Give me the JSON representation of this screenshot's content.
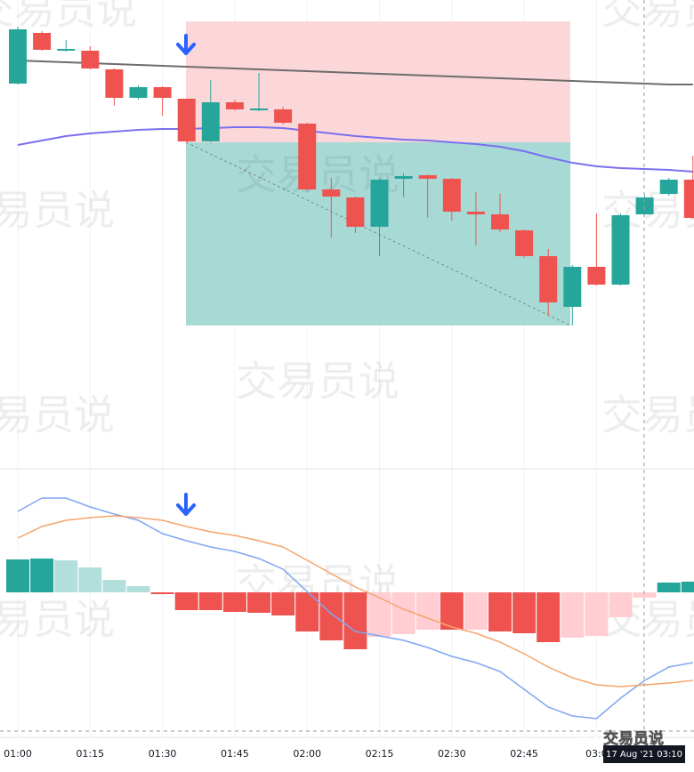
{
  "chart_data": [
    {
      "type": "candlestick",
      "categories": [
        "01:00",
        null,
        null,
        "01:15",
        null,
        null,
        "01:30",
        null,
        null,
        "01:45",
        null,
        null,
        "02:00",
        null,
        null,
        "02:15",
        null,
        null,
        "02:30",
        null,
        null,
        "02:45",
        null,
        null,
        "03:0",
        null,
        null,
        null,
        null
      ],
      "open": [
        426,
        483,
        463,
        463,
        442,
        410,
        422,
        409,
        361,
        405,
        396,
        397,
        381,
        307,
        298,
        265,
        319,
        323,
        319,
        282,
        279,
        261,
        232,
        175,
        220,
        200,
        279,
        302,
        318
      ],
      "high": [
        490,
        485,
        475,
        468,
        443,
        424,
        423,
        409,
        430,
        408,
        438,
        400,
        382,
        320,
        299,
        320,
        325,
        324,
        320,
        304,
        302,
        262,
        240,
        222,
        280,
        280,
        300,
        320,
        345
      ],
      "low": [
        425,
        463,
        462,
        442,
        401,
        408,
        390,
        360,
        360,
        396,
        395,
        380,
        305,
        253,
        258,
        232,
        298,
        275,
        272,
        244,
        259,
        230,
        165,
        154,
        199,
        199,
        278,
        300,
        274
      ],
      "close": [
        487,
        464,
        465,
        443,
        410,
        422,
        410,
        361,
        405,
        397,
        398,
        382,
        307,
        299,
        265,
        318,
        322,
        319,
        282,
        279,
        262,
        232,
        180,
        220,
        200,
        278,
        298,
        318,
        275
      ],
      "up_color": "#26a69a",
      "down_color": "#ef5350",
      "overlays": [
        {
          "color": "#6d6d6d",
          "values": [
            452,
            451,
            450,
            449,
            448,
            447,
            446,
            445,
            444,
            443,
            442,
            441,
            440,
            439,
            438,
            437,
            436,
            435,
            434,
            433,
            432,
            431,
            430,
            429,
            428,
            427,
            426,
            425,
            425
          ]
        },
        {
          "color": "#7b6ff0",
          "values": [
            357,
            362,
            367,
            370,
            372,
            374,
            375,
            375,
            376,
            377,
            377,
            376,
            373,
            370,
            367,
            365,
            363,
            362,
            360,
            358,
            355,
            350,
            343,
            337,
            333,
            331,
            330,
            329,
            327
          ]
        }
      ],
      "ylim": [
        -7,
        520
      ],
      "grid": true
    },
    {
      "type": "macd",
      "values": [
        37,
        38,
        36,
        28,
        14,
        7,
        -2,
        -20,
        -20,
        -22,
        -23,
        -26,
        -44,
        -54,
        -64,
        -50,
        -47,
        -42,
        -42,
        -42,
        -44,
        -46,
        -56,
        -51,
        -49,
        -28,
        -6,
        11,
        12
      ],
      "colors": [
        "#26a69a",
        "#26a69a",
        "#b2dfdb",
        "#b2dfdb",
        "#b2dfdb",
        "#b2dfdb",
        "#ef5350",
        "#ef5350",
        "#ef5350",
        "#ef5350",
        "#ef5350",
        "#ef5350",
        "#ef5350",
        "#ef5350",
        "#ef5350",
        "#ffcdd2",
        "#ffcdd2",
        "#ffcdd2",
        "#ef5350",
        "#ffcdd2",
        "#ef5350",
        "#ef5350",
        "#ef5350",
        "#ffcdd2",
        "#ffcdd2",
        "#ffcdd2",
        "#ffcdd2",
        "#26a69a",
        "#26a69a"
      ],
      "lines": [
        {
          "color": "#7fa6f0",
          "values": [
            91,
            106,
            106,
            96,
            88,
            81,
            66,
            58,
            51,
            46,
            38,
            26,
            1,
            -24,
            -44,
            -49,
            -54,
            -62,
            -72,
            -79,
            -89,
            -109,
            -129,
            -139,
            -142,
            -119,
            -99,
            -84,
            -79
          ]
        },
        {
          "color": "#f7a46d",
          "values": [
            61,
            74,
            81,
            84,
            86,
            84,
            81,
            74,
            68,
            64,
            58,
            51,
            36,
            21,
            6,
            -6,
            -19,
            -29,
            -39,
            -46,
            -56,
            -69,
            -84,
            -96,
            -104,
            -106,
            -104,
            -102,
            -99
          ]
        }
      ],
      "ylim": [
        -162,
        139
      ]
    }
  ],
  "watermark": "交易员说",
  "crosshair_label": "17 Aug '21  03:10",
  "logo": "交易员说"
}
